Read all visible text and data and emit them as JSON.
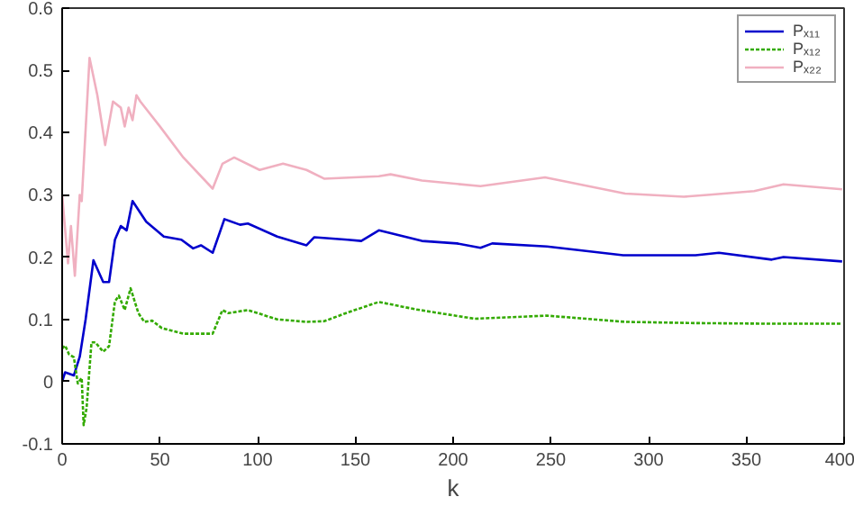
{
  "chart_data": {
    "type": "line",
    "xlabel": "k",
    "xlim": [
      0,
      400
    ],
    "ylim": [
      -0.1,
      0.6
    ],
    "xticks": [
      0,
      50,
      100,
      150,
      200,
      250,
      300,
      350,
      400
    ],
    "yticks": [
      -0.1,
      0,
      0.1,
      0.2,
      0.3,
      0.4,
      0.5,
      0.6
    ],
    "grid": false,
    "legend": "top right",
    "marker": "none",
    "series": [
      {
        "name": "Pₓ₁₁",
        "color": "#0000cc",
        "line_style": "solid",
        "x": [
          0,
          1.5,
          6,
          9,
          12,
          16,
          21,
          24,
          27,
          30,
          33,
          36,
          43,
          52,
          61,
          67,
          71,
          77,
          83,
          91,
          95,
          110,
          125,
          129,
          146,
          153,
          162,
          184,
          202,
          214,
          220,
          248,
          287,
          324,
          336,
          363,
          369,
          399
        ],
        "values": [
          0.0,
          0.015,
          0.01,
          0.04,
          0.1,
          0.195,
          0.16,
          0.16,
          0.228,
          0.25,
          0.243,
          0.29,
          0.257,
          0.233,
          0.228,
          0.214,
          0.219,
          0.207,
          0.261,
          0.252,
          0.254,
          0.233,
          0.219,
          0.232,
          0.228,
          0.226,
          0.243,
          0.226,
          0.222,
          0.215,
          0.222,
          0.217,
          0.203,
          0.203,
          0.207,
          0.196,
          0.2,
          0.193
        ]
      },
      {
        "name": "Pₓ₁₂",
        "color": "#33aa00",
        "line_style": "dotted",
        "x": [
          0,
          1.5,
          3.5,
          6,
          8,
          10,
          11,
          12.5,
          15,
          17,
          21,
          24,
          27,
          29,
          32,
          35,
          39,
          42,
          46,
          51,
          62,
          77,
          82,
          85,
          95,
          110,
          125,
          134,
          146,
          162,
          181,
          211,
          248,
          288,
          324,
          363,
          399
        ],
        "values": [
          0.053,
          0.058,
          0.044,
          0.039,
          -0.003,
          0.006,
          -0.07,
          -0.042,
          0.063,
          0.063,
          0.048,
          0.057,
          0.129,
          0.138,
          0.115,
          0.15,
          0.11,
          0.096,
          0.098,
          0.086,
          0.077,
          0.077,
          0.115,
          0.11,
          0.115,
          0.1,
          0.096,
          0.097,
          0.111,
          0.128,
          0.116,
          0.101,
          0.106,
          0.096,
          0.094,
          0.093,
          0.093
        ]
      },
      {
        "name": "Pₓ₂₂",
        "color": "#f0b0c0",
        "line_style": "solid",
        "x": [
          0,
          3,
          4.5,
          6.5,
          9,
          10,
          14,
          18,
          22,
          26,
          30,
          32,
          34,
          36,
          38,
          40,
          50,
          62,
          77,
          82,
          88,
          101,
          113,
          125,
          134,
          162,
          168,
          184,
          214,
          247,
          288,
          318,
          330,
          354,
          369,
          399
        ],
        "values": [
          0.3,
          0.19,
          0.25,
          0.17,
          0.3,
          0.29,
          0.52,
          0.46,
          0.38,
          0.45,
          0.44,
          0.41,
          0.44,
          0.42,
          0.46,
          0.45,
          0.41,
          0.36,
          0.31,
          0.35,
          0.36,
          0.34,
          0.35,
          0.34,
          0.326,
          0.33,
          0.333,
          0.323,
          0.314,
          0.328,
          0.302,
          0.297,
          0.3,
          0.306,
          0.317,
          0.309
        ]
      }
    ]
  }
}
